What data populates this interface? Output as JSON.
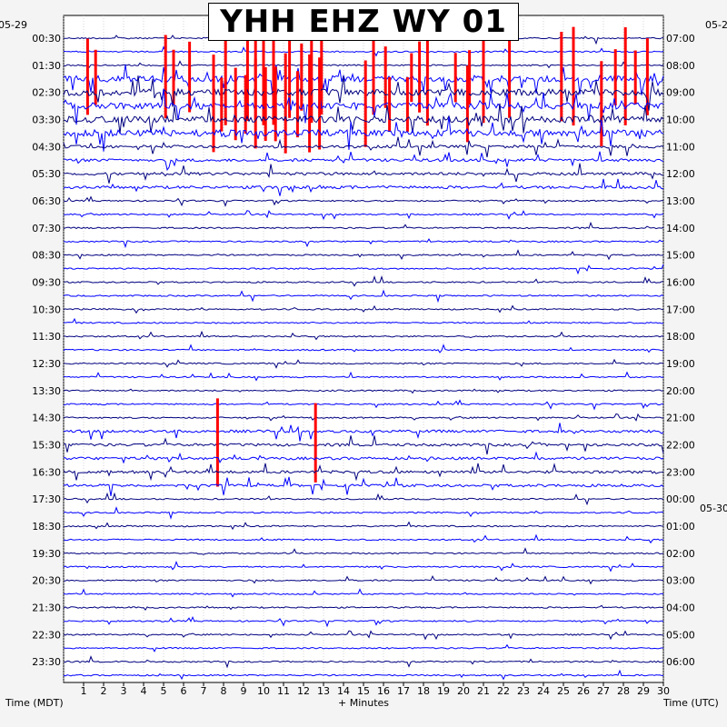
{
  "chart_data": {
    "type": "helicorder",
    "title": "YHH EHZ WY 01",
    "left_date": "05-29",
    "right_dates": [
      "05-2",
      "05-30"
    ],
    "left_axis_title": "Time (MDT)",
    "right_axis_title": "Time (UTC)",
    "x_axis_title": "+ Minutes",
    "x_ticks": [
      "1",
      "2",
      "3",
      "4",
      "5",
      "6",
      "7",
      "8",
      "9",
      "10",
      "11",
      "12",
      "13",
      "14",
      "15",
      "16",
      "17",
      "18",
      "19",
      "20",
      "21",
      "22",
      "23",
      "24",
      "25",
      "26",
      "27",
      "28",
      "29",
      "30"
    ],
    "xlim": [
      0,
      30
    ],
    "left_ticks": [
      "00:30",
      "01:30",
      "02:30",
      "03:30",
      "04:30",
      "05:30",
      "06:30",
      "07:30",
      "08:30",
      "09:30",
      "10:30",
      "11:30",
      "12:30",
      "13:30",
      "14:30",
      "15:30",
      "16:30",
      "17:30",
      "18:30",
      "19:30",
      "20:30",
      "21:30",
      "22:30",
      "23:30"
    ],
    "right_ticks": [
      "07:00",
      "08:00",
      "09:00",
      "10:00",
      "11:00",
      "12:00",
      "13:00",
      "14:00",
      "15:00",
      "16:00",
      "17:00",
      "18:00",
      "19:00",
      "20:00",
      "21:00",
      "22:00",
      "23:00",
      "00:00",
      "01:00",
      "02:00",
      "03:00",
      "04:00",
      "05:00",
      "06:00"
    ],
    "traces_per_tick": 2,
    "trace_colors": [
      "#000080",
      "#0000ff"
    ],
    "clip_color": "#ff0000",
    "grid": true,
    "clipped_bursts": [
      {
        "trace": 3,
        "minutes": [
          1.2,
          1.6,
          5.1,
          5.5,
          6.3,
          8.1,
          9.2,
          9.6,
          10.0,
          10.5,
          11.3,
          11.9,
          12.4,
          12.9,
          15.5,
          16.1,
          17.4,
          17.8,
          18.2,
          19.6,
          20.3,
          21.0,
          22.3,
          24.9,
          25.5,
          27.6,
          28.1,
          28.6,
          29.2
        ]
      },
      {
        "trace": 5,
        "minutes": [
          7.5,
          7.9,
          8.6,
          9.1,
          9.6,
          10.1,
          10.6,
          11.1,
          11.7,
          12.3,
          12.8,
          15.1,
          16.3,
          17.2,
          20.2,
          26.9
        ]
      },
      {
        "trace": 30,
        "minutes": [
          7.7,
          12.6
        ]
      }
    ]
  }
}
